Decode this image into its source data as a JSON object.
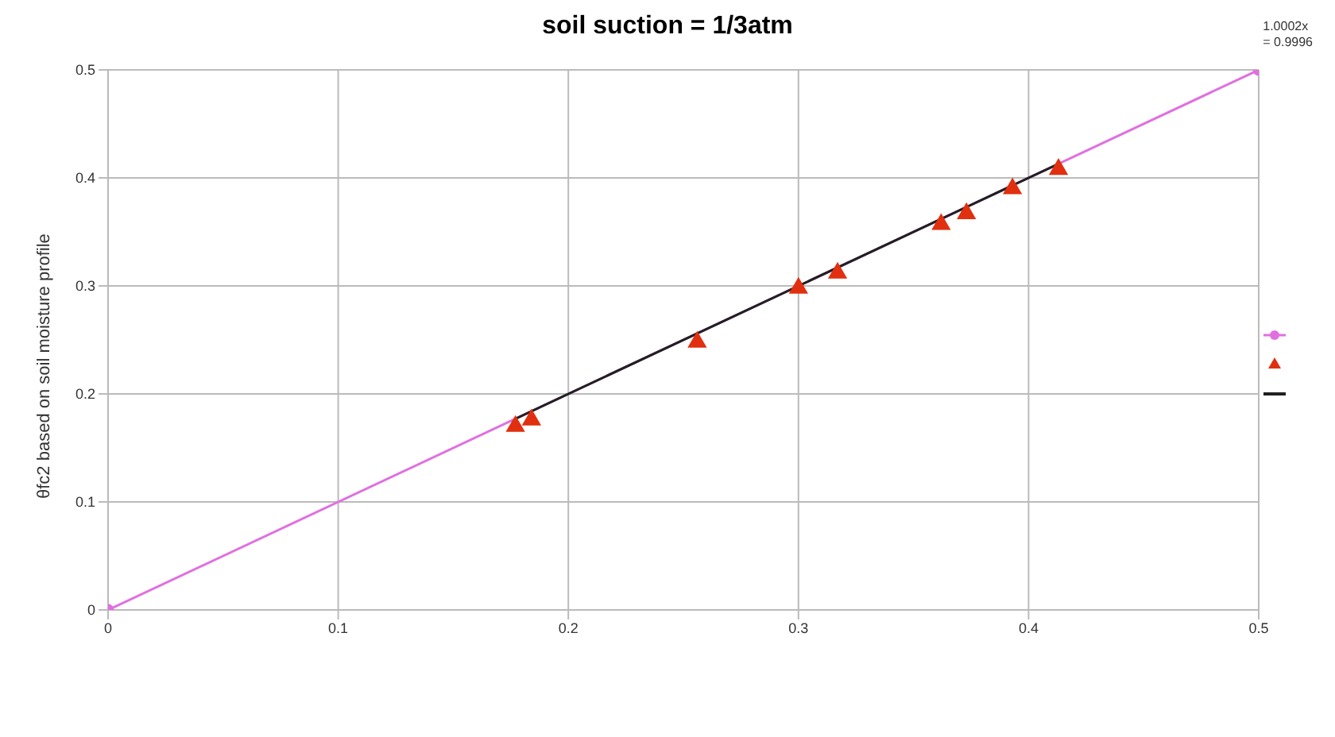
{
  "chart_data": {
    "type": "scatter",
    "title": "soil suction = 1/3atm",
    "ylabel": "θfc2 based on soil moisture profile",
    "annotations": [
      "1.0002x",
      "= 0.9996"
    ],
    "series": [
      {
        "type": "line",
        "color": "#e070e0",
        "x": [
          0,
          0.5
        ],
        "values": [
          0,
          0.5
        ],
        "marker": "circle"
      },
      {
        "color": "#e03010",
        "x": [
          0.177,
          0.184,
          0.256,
          0.3,
          0.317,
          0.362,
          0.373,
          0.393,
          0.413
        ],
        "values": [
          0.17,
          0.176,
          0.248,
          0.298,
          0.312,
          0.357,
          0.367,
          0.39,
          0.408
        ],
        "marker": "triangle"
      },
      {
        "type": "line",
        "color": "#202020",
        "x": [
          0.177,
          0.413
        ],
        "values": [
          0.177,
          0.413
        ],
        "marker": "none"
      }
    ],
    "xlim": [
      0,
      0.5
    ],
    "ylim": [
      0,
      0.5
    ],
    "xticks": [
      0,
      0.1,
      0.2,
      0.3,
      0.4,
      0.5
    ],
    "yticks": [
      0,
      0.1,
      0.2,
      0.3,
      0.4,
      0.5
    ],
    "grid": true
  }
}
